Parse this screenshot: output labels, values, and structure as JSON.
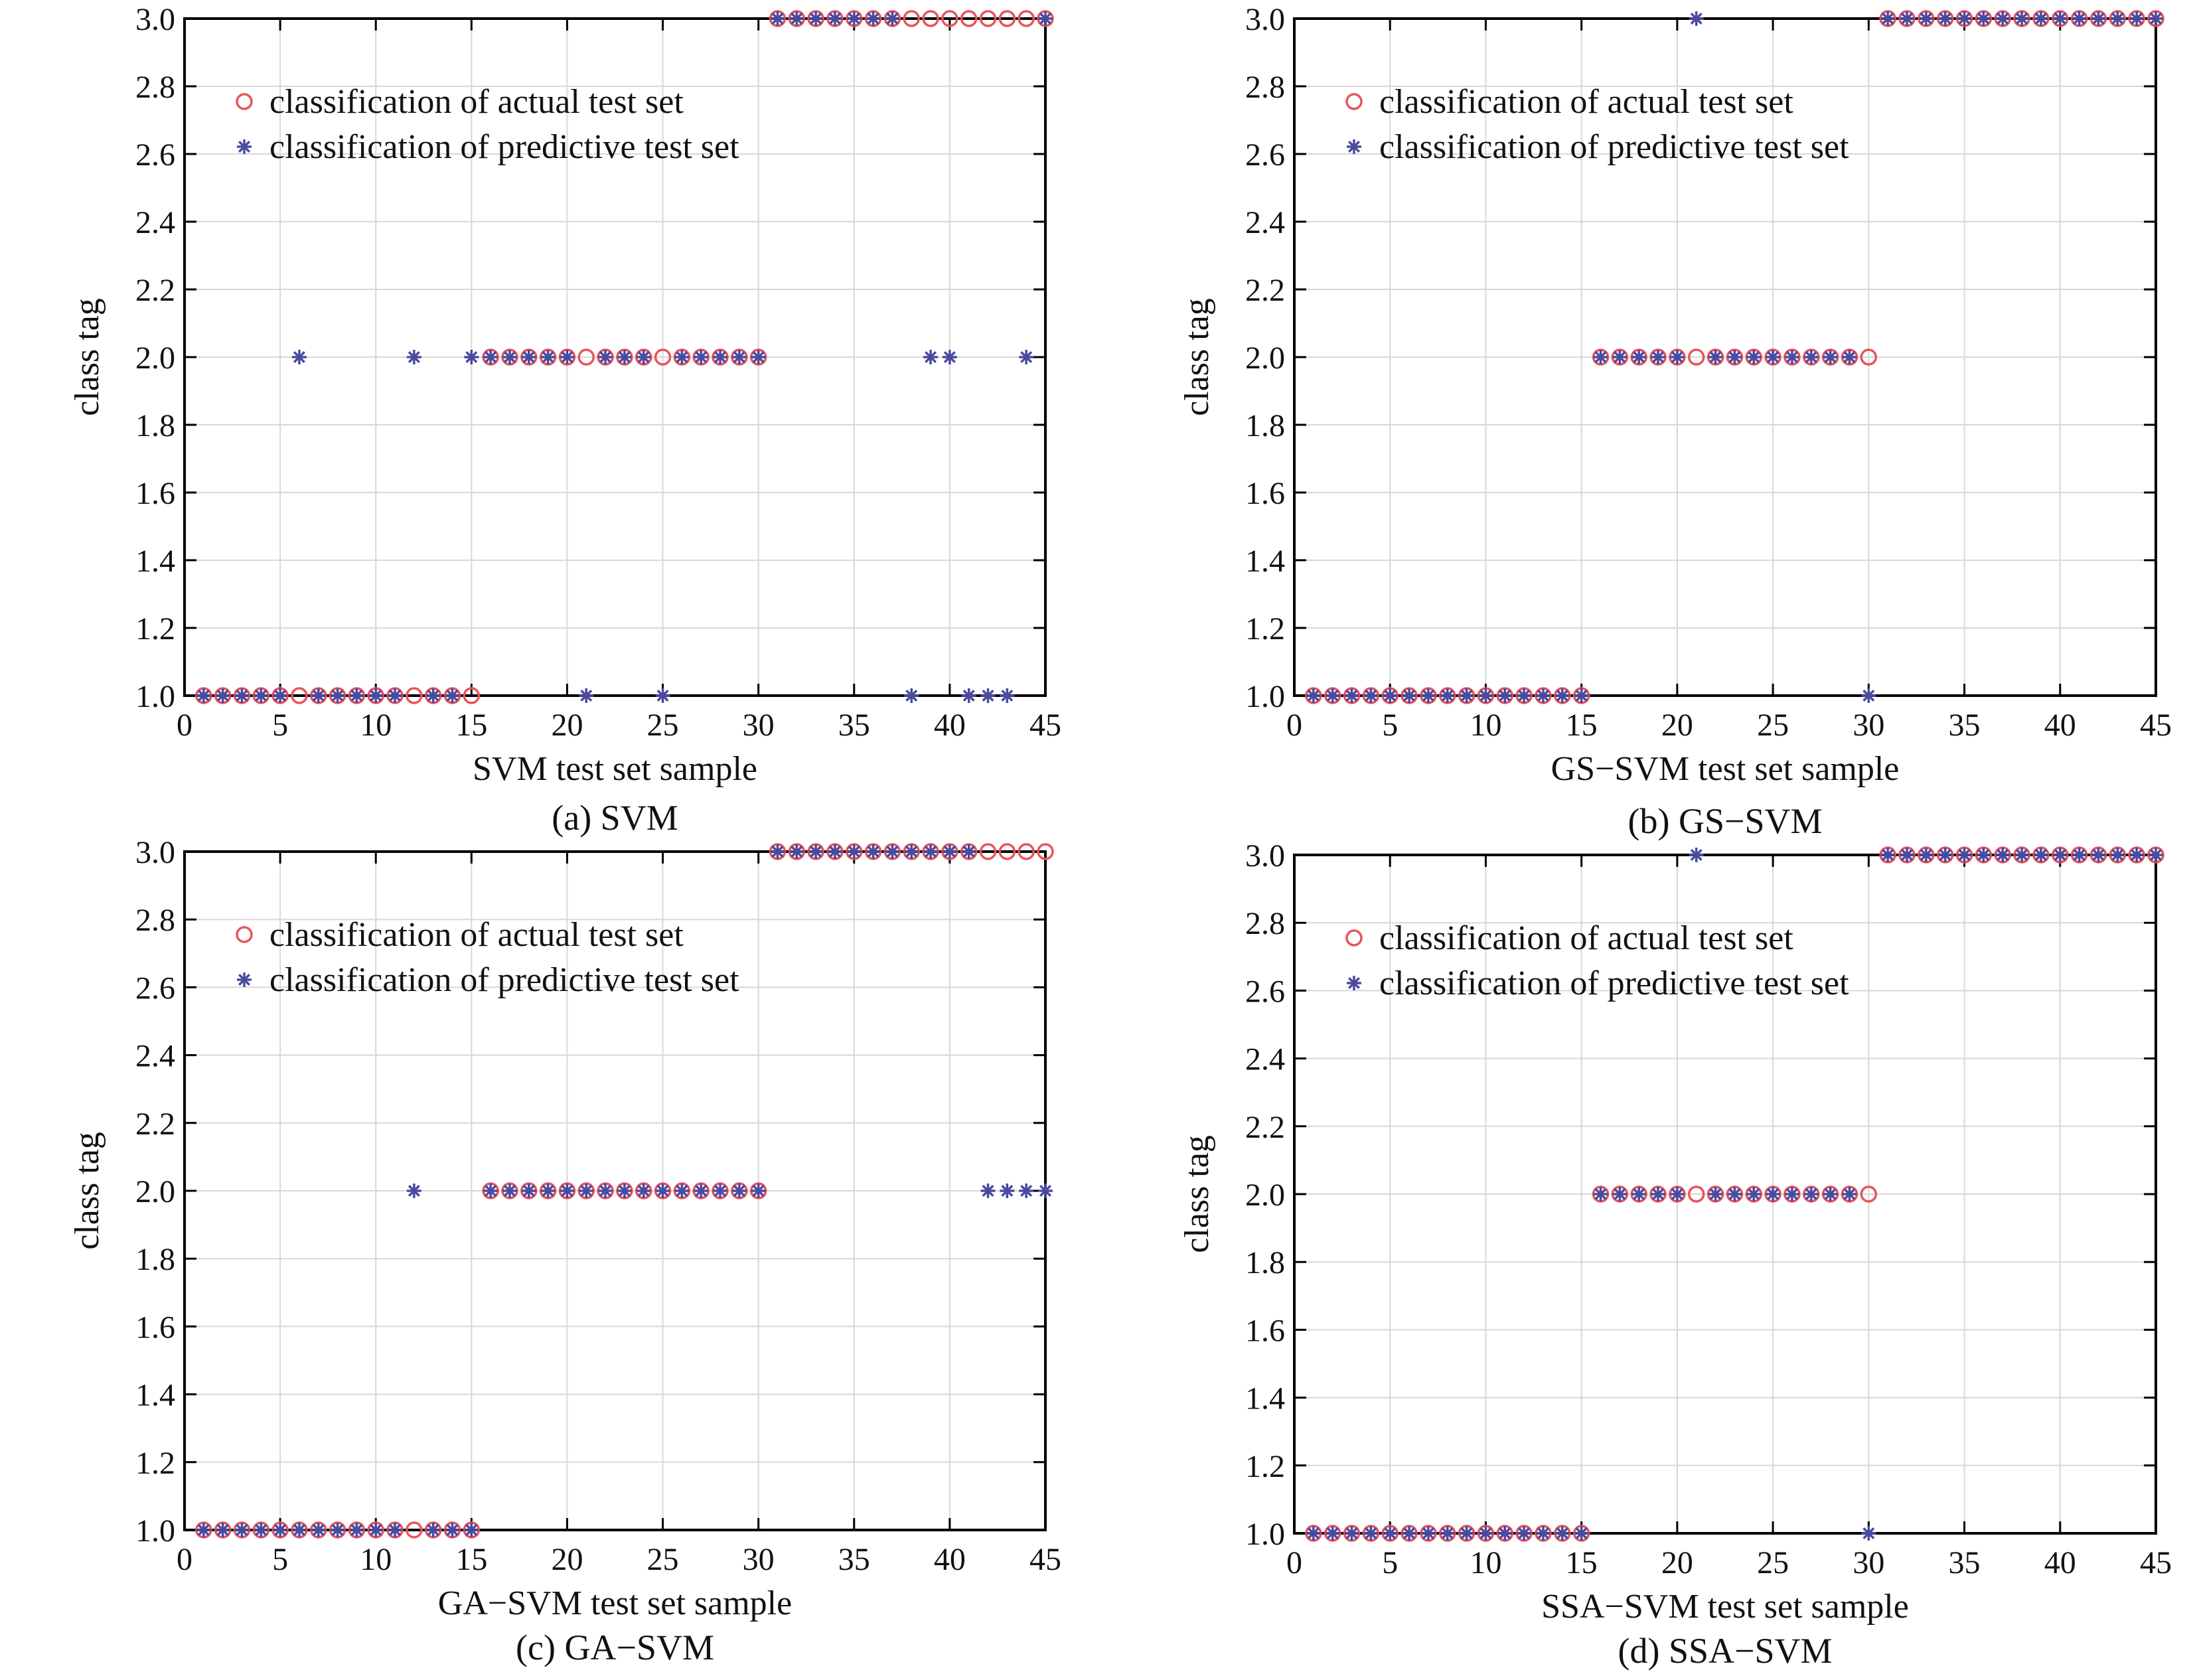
{
  "chart_data": [
    {
      "type": "scatter",
      "caption": "(a) SVM",
      "xlabel": "SVM test set sample",
      "ylabel": "class tag",
      "xlim": [
        0,
        45
      ],
      "ylim": [
        1.0,
        3.0
      ],
      "xticks": [
        "0",
        "5",
        "10",
        "15",
        "20",
        "25",
        "30",
        "35",
        "40",
        "45"
      ],
      "yticks": [
        "1.0",
        "1.2",
        "1.4",
        "1.6",
        "1.8",
        "2.0",
        "2.2",
        "2.4",
        "2.6",
        "2.8",
        "3.0"
      ],
      "grid": true,
      "legend_position": "top-left",
      "series": [
        {
          "name": "classification of actual test set",
          "marker": "circle",
          "color": "#e8545a",
          "x": [
            1,
            2,
            3,
            4,
            5,
            6,
            7,
            8,
            9,
            10,
            11,
            12,
            13,
            14,
            15,
            16,
            17,
            18,
            19,
            20,
            21,
            22,
            23,
            24,
            25,
            26,
            27,
            28,
            29,
            30,
            31,
            32,
            33,
            34,
            35,
            36,
            37,
            38,
            39,
            40,
            41,
            42,
            43,
            44,
            45
          ],
          "y": [
            1,
            1,
            1,
            1,
            1,
            1,
            1,
            1,
            1,
            1,
            1,
            1,
            1,
            1,
            1,
            2,
            2,
            2,
            2,
            2,
            2,
            2,
            2,
            2,
            2,
            2,
            2,
            2,
            2,
            2,
            3,
            3,
            3,
            3,
            3,
            3,
            3,
            3,
            3,
            3,
            3,
            3,
            3,
            3,
            3
          ]
        },
        {
          "name": "classification of predictive test set",
          "marker": "star",
          "color": "#4a4aa0",
          "x": [
            1,
            2,
            3,
            4,
            5,
            6,
            7,
            8,
            9,
            10,
            11,
            12,
            13,
            14,
            15,
            16,
            17,
            18,
            19,
            20,
            21,
            22,
            23,
            24,
            25,
            26,
            27,
            28,
            29,
            30,
            31,
            32,
            33,
            34,
            35,
            36,
            37,
            38,
            39,
            40,
            41,
            42,
            43,
            44,
            45
          ],
          "y": [
            1,
            1,
            1,
            1,
            1,
            2,
            1,
            1,
            1,
            1,
            1,
            2,
            1,
            1,
            2,
            2,
            2,
            2,
            2,
            2,
            1,
            2,
            2,
            2,
            1,
            2,
            2,
            2,
            2,
            2,
            3,
            3,
            3,
            3,
            3,
            3,
            3,
            1,
            2,
            2,
            1,
            1,
            1,
            2,
            3
          ]
        }
      ]
    },
    {
      "type": "scatter",
      "caption": "(b) GS−SVM",
      "xlabel": "GS−SVM test set sample",
      "ylabel": "class tag",
      "xlim": [
        0,
        45
      ],
      "ylim": [
        1.0,
        3.0
      ],
      "xticks": [
        "0",
        "5",
        "10",
        "15",
        "20",
        "25",
        "30",
        "35",
        "40",
        "45"
      ],
      "yticks": [
        "1.0",
        "1.2",
        "1.4",
        "1.6",
        "1.8",
        "2.0",
        "2.2",
        "2.4",
        "2.6",
        "2.8",
        "3.0"
      ],
      "grid": true,
      "legend_position": "top-left",
      "series": [
        {
          "name": "classification of actual test set",
          "marker": "circle",
          "color": "#e8545a",
          "x": [
            1,
            2,
            3,
            4,
            5,
            6,
            7,
            8,
            9,
            10,
            11,
            12,
            13,
            14,
            15,
            16,
            17,
            18,
            19,
            20,
            21,
            22,
            23,
            24,
            25,
            26,
            27,
            28,
            29,
            30,
            31,
            32,
            33,
            34,
            35,
            36,
            37,
            38,
            39,
            40,
            41,
            42,
            43,
            44,
            45
          ],
          "y": [
            1,
            1,
            1,
            1,
            1,
            1,
            1,
            1,
            1,
            1,
            1,
            1,
            1,
            1,
            1,
            2,
            2,
            2,
            2,
            2,
            2,
            2,
            2,
            2,
            2,
            2,
            2,
            2,
            2,
            2,
            3,
            3,
            3,
            3,
            3,
            3,
            3,
            3,
            3,
            3,
            3,
            3,
            3,
            3,
            3
          ]
        },
        {
          "name": "classification of predictive test set",
          "marker": "star",
          "color": "#4a4aa0",
          "x": [
            1,
            2,
            3,
            4,
            5,
            6,
            7,
            8,
            9,
            10,
            11,
            12,
            13,
            14,
            15,
            16,
            17,
            18,
            19,
            20,
            21,
            22,
            23,
            24,
            25,
            26,
            27,
            28,
            29,
            30,
            31,
            32,
            33,
            34,
            35,
            36,
            37,
            38,
            39,
            40,
            41,
            42,
            43,
            44,
            45
          ],
          "y": [
            1,
            1,
            1,
            1,
            1,
            1,
            1,
            1,
            1,
            1,
            1,
            1,
            1,
            1,
            1,
            2,
            2,
            2,
            2,
            2,
            3,
            2,
            2,
            2,
            2,
            2,
            2,
            2,
            2,
            1,
            3,
            3,
            3,
            3,
            3,
            3,
            3,
            3,
            3,
            3,
            3,
            3,
            3,
            3,
            3
          ]
        }
      ]
    },
    {
      "type": "scatter",
      "caption": "(c) GA−SVM",
      "xlabel": "GA−SVM test set sample",
      "ylabel": "class tag",
      "xlim": [
        0,
        45
      ],
      "ylim": [
        1.0,
        3.0
      ],
      "xticks": [
        "0",
        "5",
        "10",
        "15",
        "20",
        "25",
        "30",
        "35",
        "40",
        "45"
      ],
      "yticks": [
        "1.0",
        "1.2",
        "1.4",
        "1.6",
        "1.8",
        "2.0",
        "2.2",
        "2.4",
        "2.6",
        "2.8",
        "3.0"
      ],
      "grid": true,
      "legend_position": "top-left",
      "series": [
        {
          "name": "classification of actual test set",
          "marker": "circle",
          "color": "#e8545a",
          "x": [
            1,
            2,
            3,
            4,
            5,
            6,
            7,
            8,
            9,
            10,
            11,
            12,
            13,
            14,
            15,
            16,
            17,
            18,
            19,
            20,
            21,
            22,
            23,
            24,
            25,
            26,
            27,
            28,
            29,
            30,
            31,
            32,
            33,
            34,
            35,
            36,
            37,
            38,
            39,
            40,
            41,
            42,
            43,
            44,
            45
          ],
          "y": [
            1,
            1,
            1,
            1,
            1,
            1,
            1,
            1,
            1,
            1,
            1,
            1,
            1,
            1,
            1,
            2,
            2,
            2,
            2,
            2,
            2,
            2,
            2,
            2,
            2,
            2,
            2,
            2,
            2,
            2,
            3,
            3,
            3,
            3,
            3,
            3,
            3,
            3,
            3,
            3,
            3,
            3,
            3,
            3,
            3
          ]
        },
        {
          "name": "classification of predictive test set",
          "marker": "star",
          "color": "#4a4aa0",
          "x": [
            1,
            2,
            3,
            4,
            5,
            6,
            7,
            8,
            9,
            10,
            11,
            12,
            13,
            14,
            15,
            16,
            17,
            18,
            19,
            20,
            21,
            22,
            23,
            24,
            25,
            26,
            27,
            28,
            29,
            30,
            31,
            32,
            33,
            34,
            35,
            36,
            37,
            38,
            39,
            40,
            41,
            42,
            43,
            44,
            45
          ],
          "y": [
            1,
            1,
            1,
            1,
            1,
            1,
            1,
            1,
            1,
            1,
            1,
            2,
            1,
            1,
            1,
            2,
            2,
            2,
            2,
            2,
            2,
            2,
            2,
            2,
            2,
            2,
            2,
            2,
            2,
            2,
            3,
            3,
            3,
            3,
            3,
            3,
            3,
            3,
            3,
            3,
            3,
            2,
            2,
            2,
            2
          ]
        }
      ]
    },
    {
      "type": "scatter",
      "caption": "(d) SSA−SVM",
      "xlabel": "SSA−SVM test set sample",
      "ylabel": "class tag",
      "xlim": [
        0,
        45
      ],
      "ylim": [
        1.0,
        3.0
      ],
      "xticks": [
        "0",
        "5",
        "10",
        "15",
        "20",
        "25",
        "30",
        "35",
        "40",
        "45"
      ],
      "yticks": [
        "1.0",
        "1.2",
        "1.4",
        "1.6",
        "1.8",
        "2.0",
        "2.2",
        "2.4",
        "2.6",
        "2.8",
        "3.0"
      ],
      "grid": true,
      "legend_position": "top-left",
      "series": [
        {
          "name": "classification of actual test set",
          "marker": "circle",
          "color": "#e8545a",
          "x": [
            1,
            2,
            3,
            4,
            5,
            6,
            7,
            8,
            9,
            10,
            11,
            12,
            13,
            14,
            15,
            16,
            17,
            18,
            19,
            20,
            21,
            22,
            23,
            24,
            25,
            26,
            27,
            28,
            29,
            30,
            31,
            32,
            33,
            34,
            35,
            36,
            37,
            38,
            39,
            40,
            41,
            42,
            43,
            44,
            45
          ],
          "y": [
            1,
            1,
            1,
            1,
            1,
            1,
            1,
            1,
            1,
            1,
            1,
            1,
            1,
            1,
            1,
            2,
            2,
            2,
            2,
            2,
            2,
            2,
            2,
            2,
            2,
            2,
            2,
            2,
            2,
            2,
            3,
            3,
            3,
            3,
            3,
            3,
            3,
            3,
            3,
            3,
            3,
            3,
            3,
            3,
            3
          ]
        },
        {
          "name": "classification of predictive test set",
          "marker": "star",
          "color": "#4a4aa0",
          "x": [
            1,
            2,
            3,
            4,
            5,
            6,
            7,
            8,
            9,
            10,
            11,
            12,
            13,
            14,
            15,
            16,
            17,
            18,
            19,
            20,
            21,
            22,
            23,
            24,
            25,
            26,
            27,
            28,
            29,
            30,
            31,
            32,
            33,
            34,
            35,
            36,
            37,
            38,
            39,
            40,
            41,
            42,
            43,
            44,
            45
          ],
          "y": [
            1,
            1,
            1,
            1,
            1,
            1,
            1,
            1,
            1,
            1,
            1,
            1,
            1,
            1,
            1,
            2,
            2,
            2,
            2,
            2,
            3,
            2,
            2,
            2,
            2,
            2,
            2,
            2,
            2,
            1,
            3,
            3,
            3,
            3,
            3,
            3,
            3,
            3,
            3,
            3,
            3,
            3,
            3,
            3,
            3
          ]
        }
      ]
    }
  ]
}
